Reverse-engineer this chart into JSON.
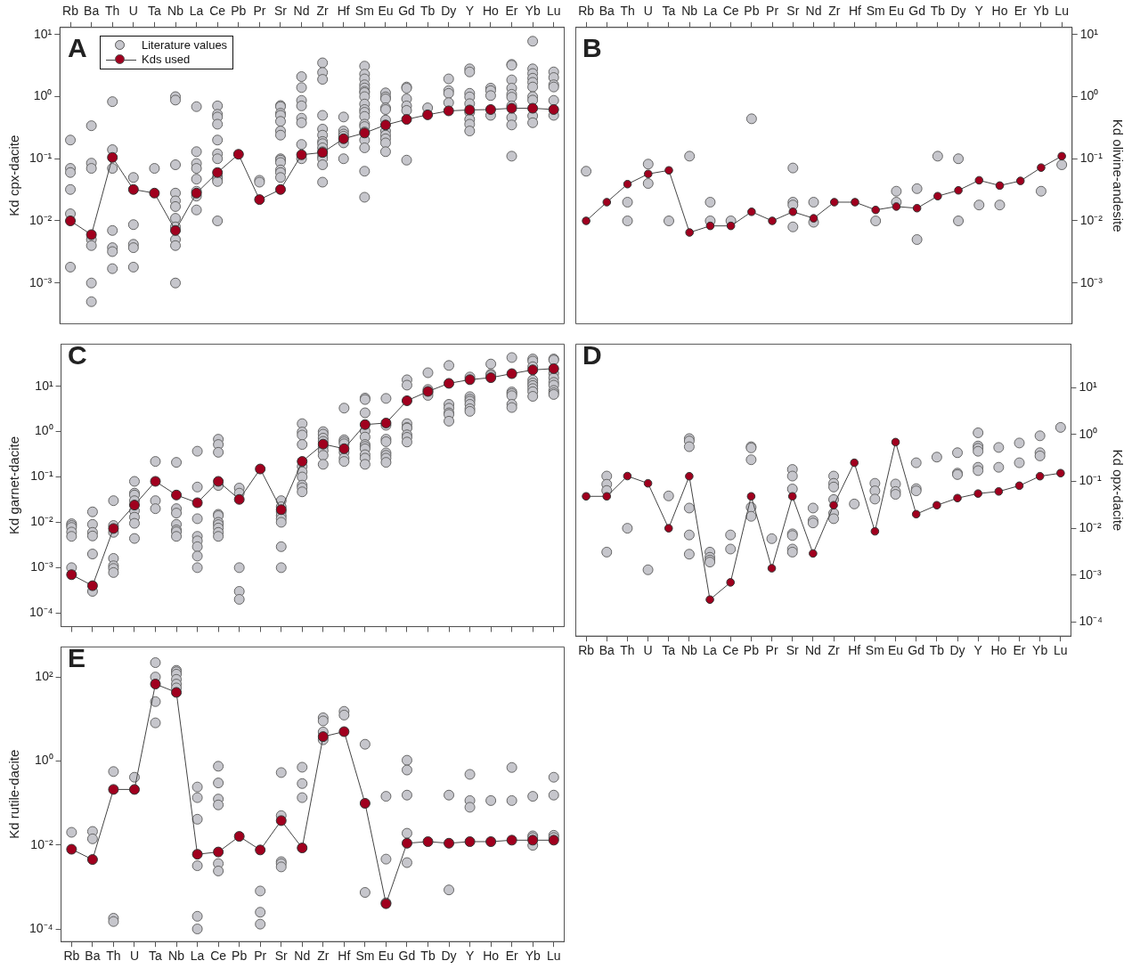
{
  "chart_data": [
    {
      "type": "line",
      "title": "A",
      "ylabel": "Kd cpx-dacite",
      "log": true,
      "legend": "top left",
      "marker": "circle",
      "ylim": [
        0.00022,
        13
      ],
      "yticks": [
        {
          "value": 0.001,
          "label": "10⁻³"
        },
        {
          "value": 0.01,
          "label": "10⁻²"
        },
        {
          "value": 0.1,
          "label": "10⁻¹"
        },
        {
          "value": 1,
          "label": "10⁰"
        },
        {
          "value": 10,
          "label": "10¹"
        }
      ],
      "categories": [
        "Rb",
        "Ba",
        "Th",
        "U",
        "Ta",
        "Nb",
        "La",
        "Ce",
        "Pb",
        "Pr",
        "Sr",
        "Nd",
        "Zr",
        "Hf",
        "Sm",
        "Eu",
        "Gd",
        "Tb",
        "Dy",
        "Y",
        "Ho",
        "Er",
        "Yb",
        "Lu"
      ],
      "series": [
        {
          "name": "Literature values",
          "type": "scatter",
          "color": "#c6c6cc",
          "x": [
            "Rb",
            "Rb",
            "Rb",
            "Rb",
            "Rb",
            "Rb",
            "Ba",
            "Ba",
            "Ba",
            "Ba",
            "Ba",
            "Ba",
            "Ba",
            "Th",
            "Th",
            "Th",
            "Th",
            "Th",
            "Th",
            "Th",
            "U",
            "U",
            "U",
            "U",
            "U",
            "Ta",
            "Nb",
            "Nb",
            "Nb",
            "Nb",
            "Nb",
            "Nb",
            "Nb",
            "Nb",
            "Nb",
            "Nb",
            "Nb",
            "La",
            "La",
            "La",
            "La",
            "La",
            "La",
            "La",
            "La",
            "Ce",
            "Ce",
            "Ce",
            "Ce",
            "Ce",
            "Ce",
            "Ce",
            "Ce",
            "Ce",
            "Ce",
            "Ce",
            "Pr",
            "Pr",
            "Sr",
            "Sr",
            "Sr",
            "Sr",
            "Sr",
            "Sr",
            "Sr",
            "Sr",
            "Sr",
            "Sr",
            "Sr",
            "Sr",
            "Sr",
            "Nd",
            "Nd",
            "Nd",
            "Nd",
            "Nd",
            "Nd",
            "Nd",
            "Nd",
            "Zr",
            "Zr",
            "Zr",
            "Zr",
            "Zr",
            "Zr",
            "Zr",
            "Zr",
            "Zr",
            "Zr",
            "Zr",
            "Zr",
            "Zr",
            "Zr",
            "Hf",
            "Hf",
            "Hf",
            "Hf",
            "Hf",
            "Hf",
            "Sm",
            "Sm",
            "Sm",
            "Sm",
            "Sm",
            "Sm",
            "Sm",
            "Sm",
            "Sm",
            "Sm",
            "Sm",
            "Sm",
            "Sm",
            "Sm",
            "Sm",
            "Sm",
            "Sm",
            "Sm",
            "Sm",
            "Eu",
            "Eu",
            "Eu",
            "Eu",
            "Eu",
            "Eu",
            "Eu",
            "Eu",
            "Eu",
            "Eu",
            "Eu",
            "Gd",
            "Gd",
            "Gd",
            "Gd",
            "Gd",
            "Gd",
            "Tb",
            "Dy",
            "Dy",
            "Dy",
            "Dy",
            "Y",
            "Y",
            "Y",
            "Y",
            "Y",
            "Y",
            "Y",
            "Y",
            "Y",
            "Ho",
            "Ho",
            "Ho",
            "Ho",
            "Er",
            "Er",
            "Er",
            "Er",
            "Er",
            "Er",
            "Er",
            "Er",
            "Er",
            "Er",
            "Yb",
            "Yb",
            "Yb",
            "Yb",
            "Yb",
            "Yb",
            "Yb",
            "Yb",
            "Yb",
            "Yb",
            "Lu",
            "Lu",
            "Lu",
            "Lu",
            "Lu",
            "Lu"
          ],
          "values": [
            0.2,
            0.07,
            0.06,
            0.032,
            0.013,
            0.0018,
            0.34,
            0.085,
            0.07,
            0.005,
            0.004,
            0.001,
            0.0005,
            0.83,
            0.14,
            0.07,
            0.007,
            0.0037,
            0.0032,
            0.0017,
            0.05,
            0.0087,
            0.0042,
            0.0037,
            0.0018,
            0.07,
            1.0,
            0.88,
            0.08,
            0.028,
            0.021,
            0.017,
            0.011,
            0.008,
            0.005,
            0.004,
            0.001,
            0.69,
            0.13,
            0.084,
            0.07,
            0.047,
            0.03,
            0.025,
            0.015,
            0.71,
            0.52,
            0.47,
            0.36,
            0.2,
            0.12,
            0.1,
            0.051,
            0.047,
            0.043,
            0.01,
            0.045,
            0.042,
            0.72,
            0.69,
            0.54,
            0.5,
            0.4,
            0.28,
            0.24,
            0.1,
            0.095,
            0.087,
            0.066,
            0.06,
            0.05,
            2.1,
            1.4,
            0.87,
            0.71,
            0.45,
            0.38,
            0.17,
            0.1,
            3.5,
            2.45,
            1.9,
            0.5,
            0.3,
            0.24,
            0.19,
            0.175,
            0.15,
            0.13,
            0.11,
            0.1,
            0.08,
            0.042,
            0.47,
            0.28,
            0.25,
            0.23,
            0.18,
            0.1,
            3.1,
            2.3,
            1.93,
            1.55,
            1.38,
            1.22,
            1.16,
            1.0,
            0.76,
            0.62,
            0.56,
            0.48,
            0.36,
            0.33,
            0.27,
            0.2,
            0.15,
            0.063,
            0.024,
            1.15,
            0.99,
            0.92,
            0.66,
            0.62,
            0.42,
            0.28,
            0.24,
            0.21,
            0.18,
            0.13,
            1.43,
            1.37,
            0.92,
            0.71,
            0.6,
            0.095,
            0.66,
            1.93,
            1.25,
            1.13,
            0.8,
            2.8,
            2.5,
            1.13,
            0.99,
            0.77,
            0.56,
            0.43,
            0.36,
            0.28,
            1.37,
            1.25,
            1.04,
            0.5,
            3.3,
            3.2,
            1.86,
            1.37,
            1.09,
            0.98,
            0.71,
            0.46,
            0.35,
            0.11,
            7.8,
            2.8,
            2.36,
            1.98,
            1.7,
            1.43,
            1.0,
            0.88,
            0.49,
            0.38,
            2.5,
            2.03,
            1.55,
            1.43,
            0.87,
            0.5
          ]
        },
        {
          "name": "Kds used",
          "color": "#a0001e",
          "values": [
            0.01,
            0.006,
            0.105,
            0.032,
            0.028,
            0.007,
            0.028,
            0.06,
            0.118,
            0.022,
            0.032,
            0.116,
            0.126,
            0.21,
            0.26,
            0.35,
            0.43,
            0.51,
            0.59,
            0.61,
            0.62,
            0.65,
            0.65,
            0.62
          ]
        }
      ]
    },
    {
      "type": "line",
      "title": "B",
      "y2label": "Kd olivine-andesite",
      "log": "y2",
      "marker": "circle",
      "y2lim": [
        0.00022,
        13
      ],
      "y2ticks": [
        {
          "value": 0.001,
          "label": "10⁻³"
        },
        {
          "value": 0.01,
          "label": "10⁻²"
        },
        {
          "value": 0.1,
          "label": "10⁻¹"
        },
        {
          "value": 1,
          "label": "10⁰"
        },
        {
          "value": 10,
          "label": "10¹"
        }
      ],
      "categories": [
        "Rb",
        "Ba",
        "Th",
        "U",
        "Ta",
        "Nb",
        "La",
        "Ce",
        "Pb",
        "Pr",
        "Sr",
        "Nd",
        "Zr",
        "Hf",
        "Sm",
        "Eu",
        "Gd",
        "Tb",
        "Dy",
        "Y",
        "Ho",
        "Er",
        "Yb",
        "Lu"
      ],
      "series": [
        {
          "type": "scatter",
          "axis": "y2",
          "color": "#c6c6cc",
          "x": [
            "Rb",
            "Th",
            "Th",
            "U",
            "U",
            "Ta",
            "Nb",
            "La",
            "La",
            "Ce",
            "Pb",
            "Sr",
            "Sr",
            "Sr",
            "Sr",
            "Nd",
            "Nd",
            "Sm",
            "Eu",
            "Eu",
            "Gd",
            "Gd",
            "Tb",
            "Dy",
            "Dy",
            "Y",
            "Ho",
            "Yb",
            "Lu"
          ],
          "values": [
            0.063,
            0.02,
            0.01,
            0.082,
            0.04,
            0.01,
            0.11,
            0.02,
            0.01,
            0.01,
            0.44,
            0.071,
            0.02,
            0.018,
            0.008,
            0.02,
            0.0095,
            0.01,
            0.03,
            0.02,
            0.033,
            0.005,
            0.11,
            0.1,
            0.01,
            0.018,
            0.018,
            0.03,
            0.08
          ]
        },
        {
          "axis": "y2",
          "color": "#a0001e",
          "values": [
            0.01,
            0.02,
            0.039,
            0.057,
            0.065,
            0.0065,
            0.0083,
            0.0083,
            0.014,
            0.01,
            0.014,
            0.011,
            0.02,
            0.02,
            0.015,
            0.017,
            0.016,
            0.025,
            0.031,
            0.045,
            0.037,
            0.044,
            0.072,
            0.11
          ]
        }
      ]
    },
    {
      "type": "line",
      "title": "C",
      "ylabel": "Kd garnet-dacite",
      "log": true,
      "marker": "circle",
      "tick_labels": "y",
      "ylim": [
        5e-05,
        85
      ],
      "yticks": [
        {
          "value": 0.0001,
          "label": "10⁻⁴"
        },
        {
          "value": 0.001,
          "label": "10⁻³"
        },
        {
          "value": 0.01,
          "label": "10⁻²"
        },
        {
          "value": 0.1,
          "label": "10⁻¹"
        },
        {
          "value": 1,
          "label": "10⁰"
        },
        {
          "value": 10,
          "label": "10¹"
        }
      ],
      "categories": [
        "Rb",
        "Ba",
        "Th",
        "U",
        "Ta",
        "Nb",
        "La",
        "Ce",
        "Pb",
        "Pr",
        "Sr",
        "Nd",
        "Zr",
        "Hf",
        "Sm",
        "Eu",
        "Gd",
        "Tb",
        "Dy",
        "Y",
        "Ho",
        "Er",
        "Yb",
        "Lu"
      ],
      "series": [
        {
          "type": "scatter",
          "color": "#c6c6cc",
          "x": [
            "Rb",
            "Rb",
            "Rb",
            "Rb",
            "Rb",
            "Rb",
            "Ba",
            "Ba",
            "Ba",
            "Ba",
            "Ba",
            "Ba",
            "Th",
            "Th",
            "Th",
            "Th",
            "Th",
            "Th",
            "Th",
            "U",
            "U",
            "U",
            "U",
            "U",
            "U",
            "U",
            "U",
            "Ta",
            "Ta",
            "Ta",
            "Nb",
            "Nb",
            "Nb",
            "Nb",
            "Nb",
            "Nb",
            "Nb",
            "La",
            "La",
            "La",
            "La",
            "La",
            "La",
            "La",
            "La",
            "Ce",
            "Ce",
            "Ce",
            "Ce",
            "Ce",
            "Ce",
            "Ce",
            "Ce",
            "Ce",
            "Ce",
            "Ce",
            "Pb",
            "Pb",
            "Pb",
            "Pb",
            "Pb",
            "Sr",
            "Sr",
            "Sr",
            "Sr",
            "Sr",
            "Sr",
            "Sr",
            "Sr",
            "Nd",
            "Nd",
            "Nd",
            "Nd",
            "Nd",
            "Nd",
            "Nd",
            "Nd",
            "Nd",
            "Nd",
            "Zr",
            "Zr",
            "Zr",
            "Zr",
            "Zr",
            "Zr",
            "Zr",
            "Zr",
            "Hf",
            "Hf",
            "Hf",
            "Hf",
            "Hf",
            "Hf",
            "Hf",
            "Sm",
            "Sm",
            "Sm",
            "Sm",
            "Sm",
            "Sm",
            "Sm",
            "Sm",
            "Sm",
            "Sm",
            "Sm",
            "Eu",
            "Eu",
            "Eu",
            "Eu",
            "Eu",
            "Eu",
            "Eu",
            "Eu",
            "Gd",
            "Gd",
            "Gd",
            "Gd",
            "Gd",
            "Gd",
            "Gd",
            "Gd",
            "Tb",
            "Tb",
            "Tb",
            "Tb",
            "Dy",
            "Dy",
            "Dy",
            "Dy",
            "Dy",
            "Dy",
            "Y",
            "Y",
            "Y",
            "Y",
            "Y",
            "Y",
            "Y",
            "Ho",
            "Ho",
            "Ho",
            "Er",
            "Er",
            "Er",
            "Er",
            "Er",
            "Er",
            "Yb",
            "Yb",
            "Yb",
            "Yb",
            "Yb",
            "Yb",
            "Yb",
            "Yb",
            "Yb",
            "Lu",
            "Lu",
            "Lu",
            "Lu",
            "Lu",
            "Lu",
            "Lu",
            "Lu",
            "Lu"
          ],
          "values": [
            0.0093,
            0.0085,
            0.0077,
            0.0061,
            0.0049,
            0.001,
            0.017,
            0.009,
            0.006,
            0.005,
            0.002,
            0.0003,
            0.03,
            0.0085,
            0.006,
            0.0016,
            0.0011,
            0.00096,
            0.00078,
            0.08,
            0.044,
            0.04,
            0.03,
            0.018,
            0.013,
            0.0095,
            0.0044,
            0.22,
            0.03,
            0.02,
            0.21,
            0.02,
            0.016,
            0.009,
            0.0068,
            0.0062,
            0.0049,
            0.37,
            0.06,
            0.012,
            0.0049,
            0.0039,
            0.0029,
            0.0018,
            0.001,
            0.68,
            0.52,
            0.35,
            0.065,
            0.015,
            0.014,
            0.01,
            0.0089,
            0.0075,
            0.006,
            0.0049,
            0.057,
            0.044,
            0.001,
            0.0003,
            0.0002,
            0.03,
            0.022,
            0.017,
            0.014,
            0.012,
            0.01,
            0.0029,
            0.001,
            1.5,
            0.98,
            0.84,
            0.52,
            0.17,
            0.13,
            0.1,
            0.066,
            0.058,
            0.047,
            1.0,
            0.88,
            0.72,
            0.61,
            0.47,
            0.38,
            0.3,
            0.19,
            3.3,
            0.66,
            0.6,
            0.54,
            0.35,
            0.26,
            0.22,
            5.5,
            5.1,
            2.6,
            1.03,
            0.76,
            0.52,
            0.47,
            0.42,
            0.31,
            0.26,
            0.19,
            5.4,
            1.38,
            0.68,
            0.6,
            0.34,
            0.3,
            0.26,
            0.21,
            13.9,
            10.6,
            1.5,
            1.23,
            1.2,
            0.85,
            0.75,
            0.59,
            19.9,
            8.5,
            7.3,
            6.3,
            28.8,
            4.0,
            3.3,
            2.6,
            2.4,
            1.7,
            16,
            5.9,
            5.2,
            4.7,
            4.0,
            3.2,
            2.8,
            31,
            18.6,
            17.4,
            43,
            7.5,
            6.9,
            6.2,
            4.0,
            3.4,
            40,
            36,
            27,
            13.7,
            11.8,
            10.4,
            8.9,
            7.6,
            6.0,
            40,
            38,
            19.2,
            15.3,
            12.2,
            10.6,
            8.1,
            7.2,
            6.6
          ]
        },
        {
          "color": "#a0001e",
          "values": [
            0.0007,
            0.0004,
            0.0073,
            0.024,
            0.08,
            0.04,
            0.027,
            0.08,
            0.032,
            0.15,
            0.019,
            0.22,
            0.53,
            0.42,
            1.43,
            1.55,
            4.8,
            7.7,
            11.6,
            14,
            15.5,
            19,
            23,
            24.5
          ]
        }
      ]
    },
    {
      "type": "line",
      "title": "D",
      "y2label": "Kd opx-dacite",
      "log": "y2",
      "marker": "circle",
      "y2lim": [
        5e-05,
        85
      ],
      "y2ticks": [
        {
          "value": 0.0001,
          "label": "10⁻⁴"
        },
        {
          "value": 0.001,
          "label": "10⁻³"
        },
        {
          "value": 0.01,
          "label": "10⁻²"
        },
        {
          "value": 0.1,
          "label": "10⁻¹"
        },
        {
          "value": 1,
          "label": "10⁰"
        },
        {
          "value": 10,
          "label": "10¹"
        }
      ],
      "categories": [
        "Rb",
        "Ba",
        "Th",
        "U",
        "Ta",
        "Nb",
        "La",
        "Ce",
        "Pb",
        "Pr",
        "Sr",
        "Nd",
        "Zr",
        "Hf",
        "Sm",
        "Eu",
        "Gd",
        "Tb",
        "Dy",
        "Y",
        "Ho",
        "Er",
        "Yb",
        "Lu"
      ],
      "series": [
        {
          "type": "scatter",
          "axis": "y2",
          "color": "#c6c6cc",
          "x": [
            "Ba",
            "Ba",
            "Ba",
            "Ba",
            "Th",
            "U",
            "Ta",
            "Nb",
            "Nb",
            "Nb",
            "Nb",
            "Nb",
            "Nb",
            "La",
            "La",
            "La",
            "La",
            "Ce",
            "Ce",
            "Pb",
            "Pb",
            "Pb",
            "Pb",
            "Pb",
            "Pr",
            "Sr",
            "Sr",
            "Sr",
            "Sr",
            "Sr",
            "Sr",
            "Sr",
            "Nd",
            "Nd",
            "Nd",
            "Zr",
            "Zr",
            "Zr",
            "Zr",
            "Zr",
            "Zr",
            "Hf",
            "Sm",
            "Sm",
            "Sm",
            "Eu",
            "Eu",
            "Eu",
            "Gd",
            "Gd",
            "Gd",
            "Tb",
            "Dy",
            "Dy",
            "Dy",
            "Y",
            "Y",
            "Y",
            "Y",
            "Y",
            "Y",
            "Ho",
            "Ho",
            "Er",
            "Er",
            "Yb",
            "Yb",
            "Yb",
            "Lu"
          ],
          "values": [
            0.13,
            0.087,
            0.064,
            0.0031,
            0.01,
            0.0013,
            0.049,
            0.82,
            0.73,
            0.55,
            0.027,
            0.0072,
            0.0028,
            0.0031,
            0.0024,
            0.0021,
            0.0019,
            0.0072,
            0.0036,
            0.55,
            0.52,
            0.29,
            0.028,
            0.018,
            0.006,
            0.18,
            0.13,
            0.069,
            0.0076,
            0.007,
            0.0036,
            0.0031,
            0.027,
            0.0146,
            0.013,
            0.13,
            0.091,
            0.076,
            0.041,
            0.021,
            0.016,
            0.033,
            0.091,
            0.063,
            0.042,
            0.088,
            0.061,
            0.053,
            0.25,
            0.07,
            0.063,
            0.33,
            0.41,
            0.15,
            0.14,
            1.09,
            0.57,
            0.51,
            0.44,
            0.2,
            0.17,
            0.53,
            0.2,
            0.66,
            0.25,
            0.94,
            0.41,
            0.35,
            1.42
          ]
        },
        {
          "axis": "y2",
          "color": "#a0001e",
          "values": [
            0.048,
            0.048,
            0.13,
            0.091,
            0.01,
            0.129,
            0.0003,
            0.0007,
            0.048,
            0.0014,
            0.048,
            0.0029,
            0.031,
            0.25,
            0.0086,
            0.69,
            0.02,
            0.031,
            0.044,
            0.055,
            0.061,
            0.081,
            0.129,
            0.15
          ]
        }
      ]
    },
    {
      "type": "line",
      "title": "E",
      "ylabel": "Kd rutile-dacite",
      "log": true,
      "marker": "circle",
      "ylim": [
        5e-05,
        520
      ],
      "yticks": [
        {
          "value": 0.0001,
          "label": "10⁻⁴"
        },
        {
          "value": 0.01,
          "label": "10⁻²"
        },
        {
          "value": 1,
          "label": "10⁰"
        },
        {
          "value": 100,
          "label": "10²"
        }
      ],
      "categories": [
        "Rb",
        "Ba",
        "Th",
        "U",
        "Ta",
        "Nb",
        "La",
        "Ce",
        "Pb",
        "Pr",
        "Sr",
        "Nd",
        "Zr",
        "Hf",
        "Sm",
        "Eu",
        "Gd",
        "Tb",
        "Dy",
        "Y",
        "Ho",
        "Er",
        "Yb",
        "Lu"
      ],
      "series": [
        {
          "type": "scatter",
          "color": "#c6c6cc",
          "x": [
            "Rb",
            "Ba",
            "Ba",
            "Th",
            "Th",
            "Th",
            "U",
            "Ta",
            "Ta",
            "Ta",
            "Ta",
            "Nb",
            "Nb",
            "Nb",
            "Nb",
            "Nb",
            "Nb",
            "La",
            "La",
            "La",
            "La",
            "La",
            "La",
            "Ce",
            "Ce",
            "Ce",
            "Ce",
            "Ce",
            "Ce",
            "Pr",
            "Pr",
            "Pr",
            "Sr",
            "Sr",
            "Sr",
            "Sr",
            "Sr",
            "Nd",
            "Nd",
            "Nd",
            "Zr",
            "Zr",
            "Zr",
            "Zr",
            "Hf",
            "Hf",
            "Sm",
            "Sm",
            "Eu",
            "Eu",
            "Eu",
            "Gd",
            "Gd",
            "Gd",
            "Gd",
            "Gd",
            "Dy",
            "Dy",
            "Y",
            "Y",
            "Y",
            "Ho",
            "Er",
            "Er",
            "Yb",
            "Yb",
            "Yb",
            "Yb",
            "Lu",
            "Lu",
            "Lu",
            "Lu"
          ],
          "values": [
            0.02,
            0.021,
            0.014,
            0.56,
            0.00018,
            0.00015,
            0.41,
            220,
            100,
            26,
            8.1,
            144,
            133,
            117,
            88,
            68,
            55,
            0.24,
            0.134,
            0.041,
            0.0032,
            0.0002,
            0.0001,
            0.75,
            0.3,
            0.124,
            0.09,
            0.0036,
            0.0024,
            0.0008,
            0.00025,
            0.00013,
            0.53,
            0.05,
            0.004,
            0.0036,
            0.003,
            0.71,
            0.29,
            0.134,
            10.7,
            9.0,
            4.9,
            3.2,
            15.2,
            12.4,
            2.5,
            0.00074,
            0.144,
            0.0046,
            0.00042,
            1.04,
            0.61,
            0.154,
            0.019,
            0.0038,
            0.154,
            0.00085,
            0.48,
            0.114,
            0.079,
            0.114,
            0.7,
            0.114,
            0.144,
            0.0165,
            0.015,
            0.0098,
            0.41,
            0.154,
            0.017,
            0.015
          ]
        },
        {
          "color": "#a0001e",
          "values": [
            0.0079,
            0.0045,
            0.21,
            0.21,
            68,
            43,
            0.006,
            0.0068,
            0.016,
            0.0076,
            0.038,
            0.0085,
            3.8,
            5.0,
            0.098,
            0.0004,
            0.011,
            0.012,
            0.011,
            0.012,
            0.012,
            0.013,
            0.013,
            0.013
          ]
        }
      ]
    }
  ]
}
